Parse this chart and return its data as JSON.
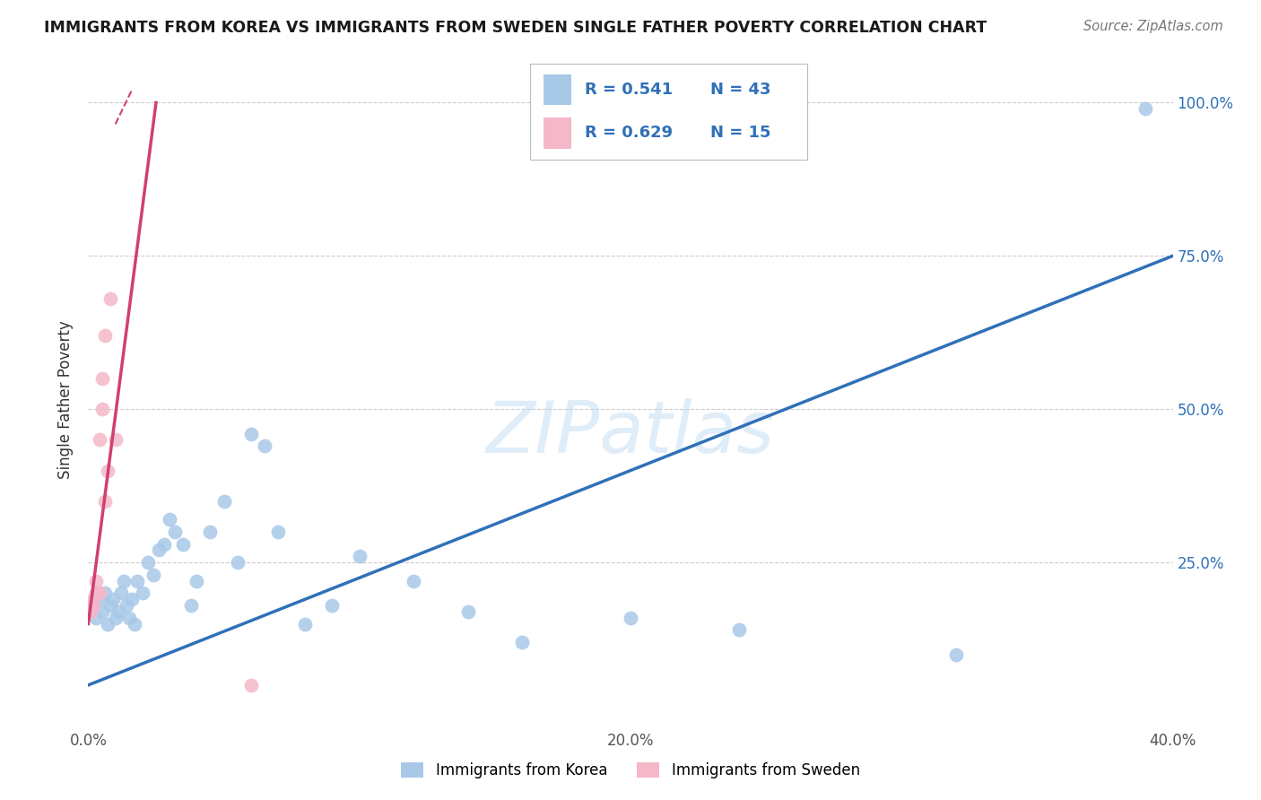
{
  "title": "IMMIGRANTS FROM KOREA VS IMMIGRANTS FROM SWEDEN SINGLE FATHER POVERTY CORRELATION CHART",
  "source": "Source: ZipAtlas.com",
  "ylabel": "Single Father Poverty",
  "xlim": [
    0.0,
    0.4
  ],
  "ylim": [
    -0.02,
    1.05
  ],
  "xticks": [
    0.0,
    0.1,
    0.2,
    0.3,
    0.4
  ],
  "xticklabels": [
    "0.0%",
    "",
    "20.0%",
    "",
    "40.0%"
  ],
  "yticks": [
    0.0,
    0.25,
    0.5,
    0.75,
    1.0
  ],
  "right_yticklabels": [
    "",
    "25.0%",
    "50.0%",
    "75.0%",
    "100.0%"
  ],
  "korea_R": 0.541,
  "korea_N": 43,
  "sweden_R": 0.629,
  "sweden_N": 15,
  "korea_color": "#a8c8e8",
  "sweden_color": "#f4b8c8",
  "korea_line_color": "#3070b8",
  "sweden_line_color": "#d04070",
  "korea_line_intercept": 0.05,
  "korea_line_slope": 1.75,
  "sweden_line_intercept": 0.1,
  "sweden_line_slope": 18.0,
  "korea_scatter_x": [
    0.002,
    0.003,
    0.004,
    0.005,
    0.006,
    0.007,
    0.008,
    0.009,
    0.01,
    0.011,
    0.012,
    0.013,
    0.014,
    0.015,
    0.016,
    0.017,
    0.018,
    0.02,
    0.022,
    0.024,
    0.026,
    0.028,
    0.03,
    0.032,
    0.035,
    0.038,
    0.04,
    0.045,
    0.05,
    0.055,
    0.06,
    0.065,
    0.07,
    0.08,
    0.09,
    0.1,
    0.12,
    0.14,
    0.16,
    0.2,
    0.24,
    0.32,
    0.39
  ],
  "korea_scatter_y": [
    0.18,
    0.16,
    0.19,
    0.17,
    0.2,
    0.15,
    0.18,
    0.19,
    0.16,
    0.17,
    0.2,
    0.22,
    0.18,
    0.16,
    0.19,
    0.15,
    0.22,
    0.2,
    0.25,
    0.23,
    0.27,
    0.28,
    0.32,
    0.3,
    0.28,
    0.18,
    0.22,
    0.3,
    0.35,
    0.25,
    0.46,
    0.44,
    0.3,
    0.15,
    0.18,
    0.26,
    0.22,
    0.17,
    0.12,
    0.16,
    0.14,
    0.1,
    0.99
  ],
  "sweden_scatter_x": [
    0.001,
    0.002,
    0.002,
    0.003,
    0.003,
    0.004,
    0.004,
    0.005,
    0.005,
    0.006,
    0.006,
    0.007,
    0.008,
    0.01,
    0.06
  ],
  "sweden_scatter_y": [
    0.17,
    0.19,
    0.18,
    0.2,
    0.22,
    0.2,
    0.45,
    0.5,
    0.55,
    0.62,
    0.35,
    0.4,
    0.68,
    0.45,
    0.05
  ]
}
